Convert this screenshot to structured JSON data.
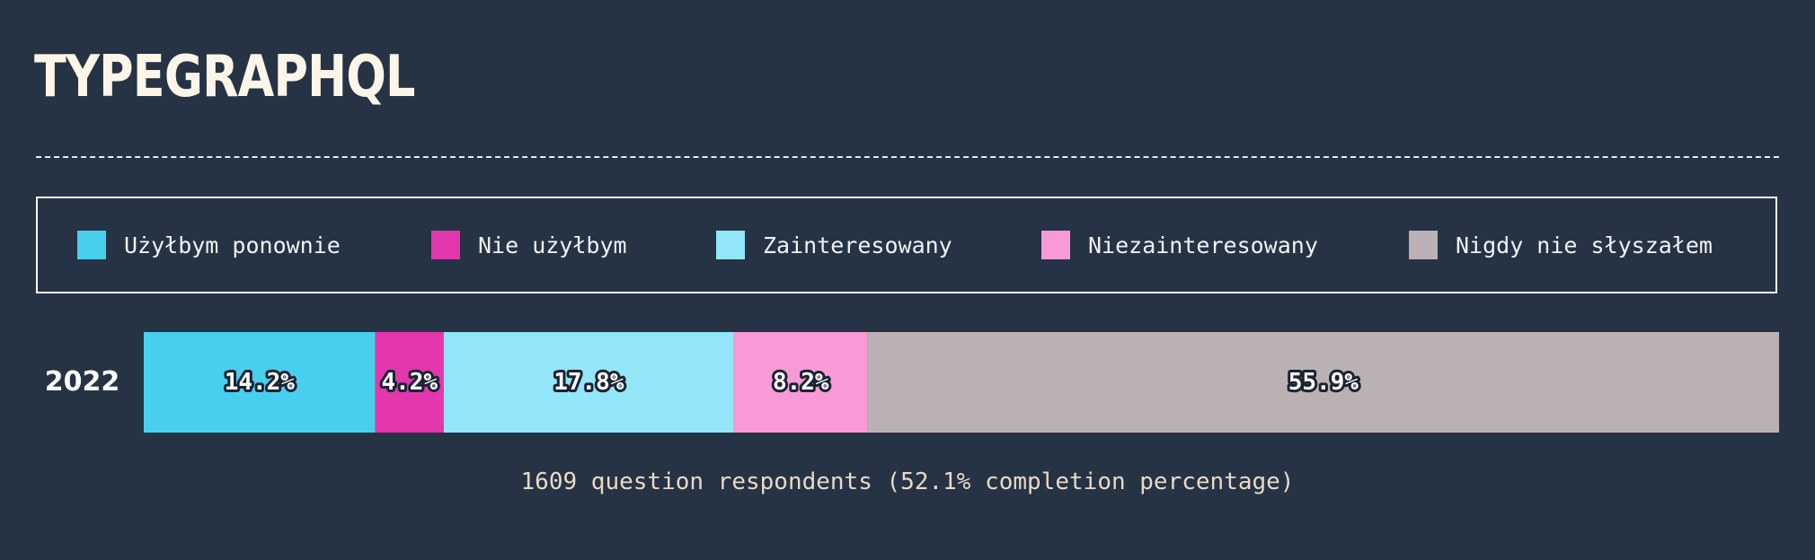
{
  "title": "TYPEGRAPHQL",
  "footnote": "1609 question respondents (52.1% completion percentage)",
  "chart_data": {
    "type": "bar",
    "orientation": "horizontal",
    "stacked": true,
    "categories": [
      "2022"
    ],
    "series": [
      {
        "name": "Użyłbym ponownie",
        "values": [
          14.2
        ],
        "label": "14.2%",
        "color": "#48cfee"
      },
      {
        "name": "Nie użyłbym",
        "values": [
          4.2
        ],
        "label": "4.2%",
        "color": "#e237ad"
      },
      {
        "name": "Zainteresowany",
        "values": [
          17.8
        ],
        "label": "17.8%",
        "color": "#93e6f8"
      },
      {
        "name": "Niezainteresowany",
        "values": [
          8.2
        ],
        "label": "8.2%",
        "color": "#f79ad6"
      },
      {
        "name": "Nigdy nie słyszałem",
        "values": [
          55.9
        ],
        "label": "55.9%",
        "color": "#bbb1b4"
      }
    ],
    "xlim": [
      0,
      100.3
    ],
    "legend_position": "top",
    "grid": false
  }
}
